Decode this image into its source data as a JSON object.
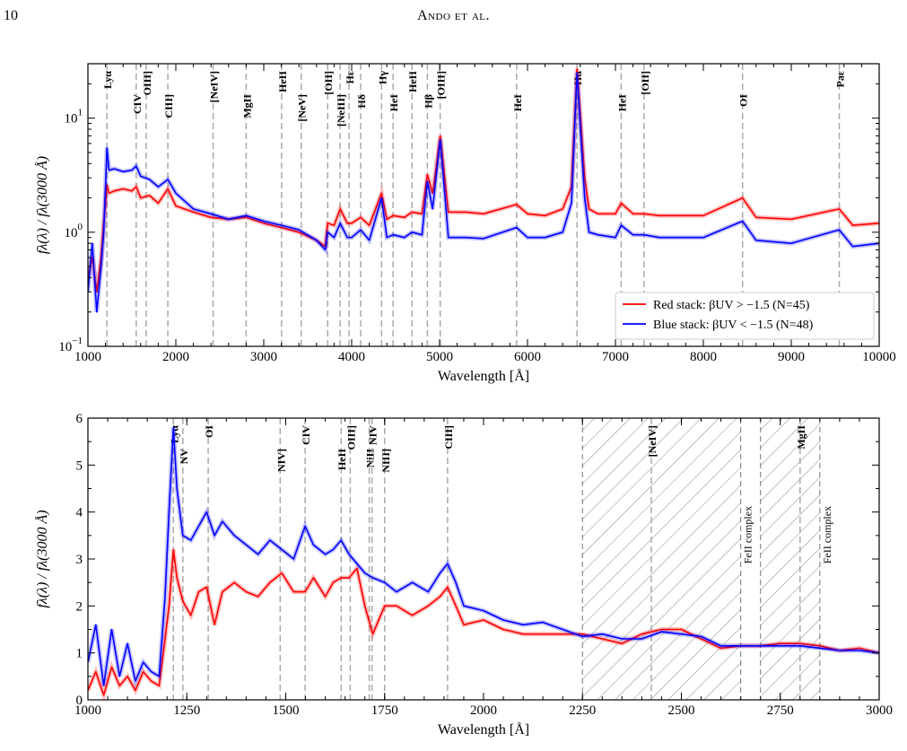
{
  "page": {
    "number": "10",
    "running_head": "Ando et al."
  },
  "chart_data": [
    {
      "type": "line",
      "xlabel": "Wavelength [Å]",
      "ylabel": "fλ(λ) / fλ(3000 Å)",
      "xlim": [
        1000,
        10000
      ],
      "ylim": [
        0.1,
        30
      ],
      "yscale": "log",
      "x_ticks": [
        1000,
        2000,
        3000,
        4000,
        5000,
        6000,
        7000,
        8000,
        9000,
        10000
      ],
      "y_tick_labels": [
        "10^−1",
        "10^0",
        "10^1"
      ],
      "legend_position": "bottom-right",
      "series": [
        {
          "name": "Red stack: βUV > −1.5 (N=45)",
          "color": "#ff0000",
          "x": [
            1000,
            1050,
            1100,
            1150,
            1180,
            1200,
            1216,
            1240,
            1300,
            1400,
            1500,
            1549,
            1600,
            1700,
            1800,
            1909,
            2000,
            2200,
            2400,
            2600,
            2800,
            3000,
            3200,
            3400,
            3600,
            3700,
            3727,
            3800,
            3869,
            3950,
            4000,
            4102,
            4200,
            4340,
            4400,
            4471,
            4600,
            4686,
            4800,
            4861,
            4920,
            4959,
            5007,
            5100,
            5300,
            5500,
            5876,
            6000,
            6200,
            6400,
            6500,
            6563,
            6650,
            6700,
            6800,
            7000,
            7065,
            7200,
            7325,
            7500,
            8000,
            8446,
            8600,
            9000,
            9545,
            9700,
            10000
          ],
          "y": [
            0.4,
            0.6,
            0.3,
            0.6,
            1.2,
            1.8,
            2.6,
            2.2,
            2.3,
            2.4,
            2.3,
            2.5,
            2.0,
            2.1,
            1.8,
            2.4,
            1.7,
            1.5,
            1.35,
            1.3,
            1.35,
            1.2,
            1.1,
            1.0,
            0.85,
            0.75,
            1.2,
            1.15,
            1.6,
            1.2,
            1.2,
            1.35,
            1.15,
            2.2,
            1.3,
            1.4,
            1.35,
            1.5,
            1.45,
            3.2,
            2.2,
            3.6,
            7.0,
            1.5,
            1.5,
            1.45,
            1.75,
            1.45,
            1.4,
            1.6,
            2.5,
            27.0,
            3.0,
            1.6,
            1.45,
            1.45,
            1.8,
            1.45,
            1.45,
            1.4,
            1.4,
            2.0,
            1.35,
            1.3,
            1.6,
            1.15,
            1.2
          ]
        },
        {
          "name": "Blue stack: βUV < −1.5 (N=48)",
          "color": "#0000ff",
          "x": [
            1000,
            1050,
            1100,
            1150,
            1180,
            1200,
            1216,
            1240,
            1300,
            1400,
            1500,
            1549,
            1600,
            1700,
            1800,
            1909,
            2000,
            2200,
            2400,
            2600,
            2800,
            3000,
            3200,
            3400,
            3600,
            3700,
            3727,
            3800,
            3869,
            3950,
            4000,
            4102,
            4200,
            4340,
            4400,
            4471,
            4600,
            4686,
            4800,
            4861,
            4920,
            4959,
            5007,
            5100,
            5300,
            5500,
            5876,
            6000,
            6200,
            6400,
            6500,
            6563,
            6650,
            6700,
            6800,
            7000,
            7065,
            7200,
            7325,
            7500,
            8000,
            8446,
            8600,
            9000,
            9545,
            9700,
            10000
          ],
          "y": [
            0.3,
            0.8,
            0.2,
            0.5,
            1.0,
            2.5,
            5.5,
            3.5,
            3.6,
            3.4,
            3.5,
            3.8,
            3.1,
            2.9,
            2.5,
            2.9,
            2.2,
            1.6,
            1.45,
            1.3,
            1.4,
            1.25,
            1.15,
            1.05,
            0.85,
            0.7,
            1.0,
            0.9,
            1.2,
            0.9,
            0.9,
            1.05,
            0.85,
            2.0,
            0.9,
            0.95,
            0.9,
            1.0,
            0.95,
            2.8,
            1.6,
            3.0,
            6.5,
            0.9,
            0.9,
            0.88,
            1.1,
            0.9,
            0.9,
            1.0,
            1.8,
            25.0,
            2.0,
            1.0,
            0.95,
            0.9,
            1.15,
            0.95,
            0.95,
            0.9,
            0.9,
            1.25,
            0.85,
            0.8,
            1.05,
            0.75,
            0.8
          ]
        }
      ],
      "lines": [
        {
          "x": 1216,
          "label": "Lyα",
          "row": 0
        },
        {
          "x": 1549,
          "label": "CIV",
          "row": 1
        },
        {
          "x": 1663,
          "label": "OIII]",
          "row": 0
        },
        {
          "x": 1909,
          "label": "CIII]",
          "row": 1
        },
        {
          "x": 2424,
          "label": "[NeIV]",
          "row": 0
        },
        {
          "x": 2800,
          "label": "MgII",
          "row": 1
        },
        {
          "x": 3203,
          "label": "HeII",
          "row": 0
        },
        {
          "x": 3426,
          "label": "[NeV]",
          "row": 1
        },
        {
          "x": 3727,
          "label": "[OII]",
          "row": 0
        },
        {
          "x": 3869,
          "label": "[NeIII]",
          "row": 1
        },
        {
          "x": 3970,
          "label": "Hε",
          "row": 0
        },
        {
          "x": 4102,
          "label": "Hδ",
          "row": 1
        },
        {
          "x": 4340,
          "label": "Hγ",
          "row": 0
        },
        {
          "x": 4471,
          "label": "HeI",
          "row": 1
        },
        {
          "x": 4686,
          "label": "HeII",
          "row": 0
        },
        {
          "x": 4861,
          "label": "Hβ",
          "row": 1
        },
        {
          "x": 5007,
          "label": "[OIII]",
          "row": 0
        },
        {
          "x": 5876,
          "label": "HeI",
          "row": 1
        },
        {
          "x": 6563,
          "label": "Hα",
          "row": 0
        },
        {
          "x": 7065,
          "label": "HeI",
          "row": 1
        },
        {
          "x": 7325,
          "label": "[OII]",
          "row": 0
        },
        {
          "x": 8446,
          "label": "OI",
          "row": 1
        },
        {
          "x": 9546,
          "label": "Paε",
          "row": 0
        }
      ]
    },
    {
      "type": "line",
      "xlabel": "Wavelength [Å]",
      "ylabel": "fλ(λ) / fλ(3000 Å)",
      "xlim": [
        1000,
        3000
      ],
      "ylim": [
        0,
        6
      ],
      "x_ticks": [
        1000,
        1250,
        1500,
        1750,
        2000,
        2250,
        2500,
        2750,
        3000
      ],
      "y_ticks": [
        0,
        1,
        2,
        3,
        4,
        5,
        6
      ],
      "series": [
        {
          "name": "Red stack: βUV > −1.5 (N=45)",
          "color": "#ff0000",
          "x": [
            1000,
            1020,
            1040,
            1060,
            1080,
            1100,
            1120,
            1140,
            1160,
            1180,
            1195,
            1205,
            1216,
            1225,
            1240,
            1260,
            1280,
            1300,
            1320,
            1340,
            1370,
            1400,
            1430,
            1460,
            1490,
            1520,
            1549,
            1570,
            1600,
            1620,
            1640,
            1660,
            1680,
            1700,
            1720,
            1750,
            1780,
            1820,
            1860,
            1890,
            1909,
            1930,
            1950,
            2000,
            2050,
            2100,
            2150,
            2200,
            2250,
            2300,
            2350,
            2400,
            2450,
            2500,
            2550,
            2600,
            2650,
            2700,
            2750,
            2800,
            2850,
            2900,
            2950,
            3000
          ],
          "y": [
            0.2,
            0.6,
            0.1,
            0.7,
            0.3,
            0.5,
            0.2,
            0.6,
            0.4,
            0.3,
            1.3,
            2.0,
            3.2,
            2.6,
            2.1,
            1.8,
            2.3,
            2.4,
            1.6,
            2.3,
            2.5,
            2.3,
            2.2,
            2.5,
            2.7,
            2.3,
            2.3,
            2.6,
            2.2,
            2.5,
            2.6,
            2.6,
            2.8,
            2.0,
            1.4,
            2.0,
            2.0,
            1.8,
            2.0,
            2.2,
            2.4,
            2.0,
            1.6,
            1.7,
            1.5,
            1.4,
            1.4,
            1.4,
            1.4,
            1.3,
            1.2,
            1.4,
            1.5,
            1.5,
            1.3,
            1.1,
            1.15,
            1.15,
            1.2,
            1.2,
            1.15,
            1.05,
            1.1,
            1.0
          ]
        },
        {
          "name": "Blue stack: βUV < −1.5 (N=48)",
          "color": "#0000ff",
          "x": [
            1000,
            1020,
            1040,
            1060,
            1080,
            1100,
            1120,
            1140,
            1160,
            1180,
            1195,
            1205,
            1216,
            1225,
            1240,
            1260,
            1280,
            1300,
            1320,
            1340,
            1370,
            1400,
            1430,
            1460,
            1490,
            1520,
            1549,
            1570,
            1600,
            1620,
            1640,
            1660,
            1680,
            1700,
            1720,
            1750,
            1780,
            1820,
            1860,
            1890,
            1909,
            1930,
            1950,
            2000,
            2050,
            2100,
            2150,
            2200,
            2250,
            2300,
            2350,
            2400,
            2450,
            2500,
            2550,
            2600,
            2650,
            2700,
            2750,
            2800,
            2850,
            2900,
            2950,
            3000
          ],
          "y": [
            0.8,
            1.6,
            0.3,
            1.5,
            0.5,
            1.2,
            0.4,
            0.8,
            0.6,
            0.5,
            2.2,
            4.0,
            5.8,
            4.5,
            3.5,
            3.4,
            3.7,
            4.0,
            3.5,
            3.8,
            3.5,
            3.3,
            3.1,
            3.4,
            3.2,
            3.0,
            3.7,
            3.3,
            3.1,
            3.2,
            3.4,
            3.1,
            2.9,
            2.7,
            2.6,
            2.5,
            2.3,
            2.5,
            2.3,
            2.7,
            2.9,
            2.5,
            2.0,
            1.9,
            1.7,
            1.6,
            1.65,
            1.5,
            1.35,
            1.4,
            1.3,
            1.3,
            1.45,
            1.4,
            1.35,
            1.15,
            1.15,
            1.15,
            1.15,
            1.15,
            1.1,
            1.05,
            1.05,
            1.0
          ]
        }
      ],
      "lines": [
        {
          "x": 1216,
          "label": "Lyα",
          "row": 0
        },
        {
          "x": 1240,
          "label": "NV",
          "row": 1
        },
        {
          "x": 1304,
          "label": "OI",
          "row": 0
        },
        {
          "x": 1486,
          "label": "NIV]",
          "row": 1
        },
        {
          "x": 1549,
          "label": "CIV",
          "row": 0
        },
        {
          "x": 1640,
          "label": "HeII",
          "row": 1
        },
        {
          "x": 1663,
          "label": "OIII]",
          "row": 0
        },
        {
          "x": 1711,
          "label": "NiII",
          "row": 1
        },
        {
          "x": 1718,
          "label": "NIV",
          "row": 0
        },
        {
          "x": 1750,
          "label": "NIII]",
          "row": 1
        },
        {
          "x": 1909,
          "label": "CIII]",
          "row": 0
        },
        {
          "x": 2424,
          "label": "[NeIV]",
          "row": 0
        },
        {
          "x": 2800,
          "label": "MgII",
          "row": 0
        }
      ],
      "hatched_regions": [
        {
          "x0": 2250,
          "x1": 2650,
          "label": "FeII complex"
        },
        {
          "x0": 2700,
          "x1": 2850,
          "label": "FeII complex"
        }
      ]
    }
  ]
}
